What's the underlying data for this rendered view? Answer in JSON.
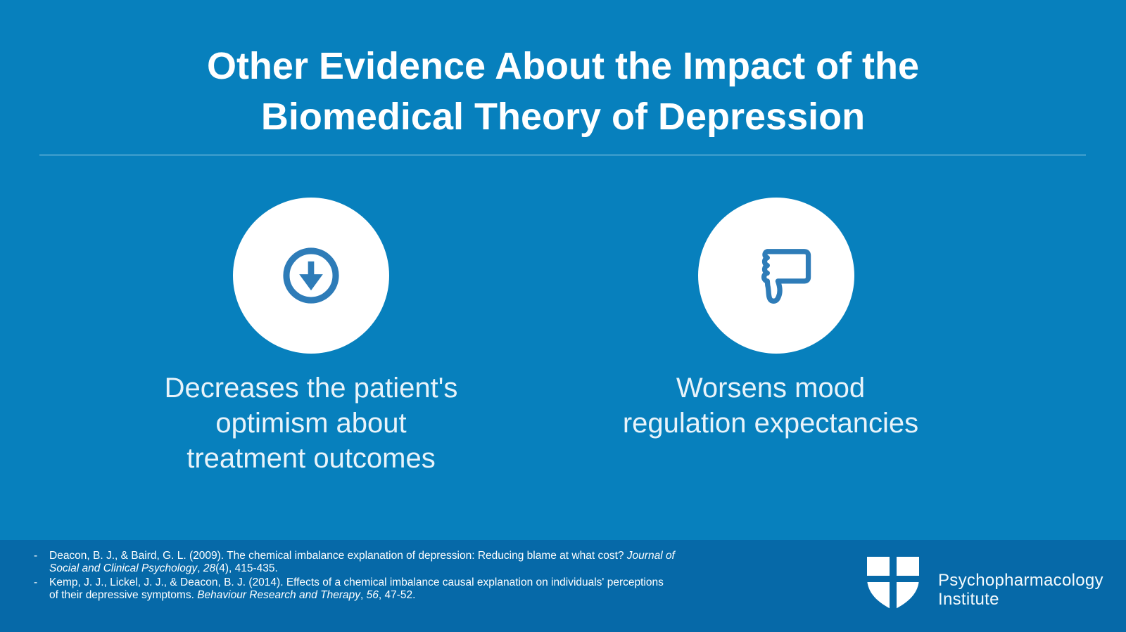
{
  "colors": {
    "background": "#0780BD",
    "footer_background": "#0669A8",
    "icon_blue": "#2E7CB8",
    "divider": "#BEE3F2",
    "caption_text": "#E8F3FA",
    "title_text": "#FFFFFF"
  },
  "title": {
    "line1": "Other Evidence About the Impact of the",
    "line2": "Biomedical Theory of Depression"
  },
  "items": [
    {
      "icon": "circle-down-arrow",
      "caption_lines": [
        "Decreases the patient's",
        "optimism about",
        "treatment outcomes"
      ]
    },
    {
      "icon": "thumbs-down",
      "caption_lines": [
        "Worsens mood",
        "regulation expectancies"
      ]
    }
  ],
  "footer": {
    "bullet": "-",
    "references": [
      [
        {
          "t": "Deacon, B. J., & Baird, G. L. (2009). The chemical imbalance explanation of depression: Reducing blame at what cost? ",
          "i": false
        },
        {
          "t": "Journal of Social and Clinical Psychology",
          "i": true
        },
        {
          "t": ", ",
          "i": false
        },
        {
          "t": "28",
          "i": true
        },
        {
          "t": "(4), 415-435.",
          "i": false
        }
      ],
      [
        {
          "t": "Kemp, J. J., Lickel, J. J., & Deacon, B. J. (2014). Effects of a chemical imbalance causal explanation on individuals' perceptions of their depressive symptoms. ",
          "i": false
        },
        {
          "t": "Behaviour Research and Therapy",
          "i": true
        },
        {
          "t": ", ",
          "i": false
        },
        {
          "t": "56",
          "i": true
        },
        {
          "t": ", 47-52.",
          "i": false
        }
      ]
    ],
    "logo": {
      "line1": "Psychopharmacology",
      "line2": "Institute"
    }
  }
}
